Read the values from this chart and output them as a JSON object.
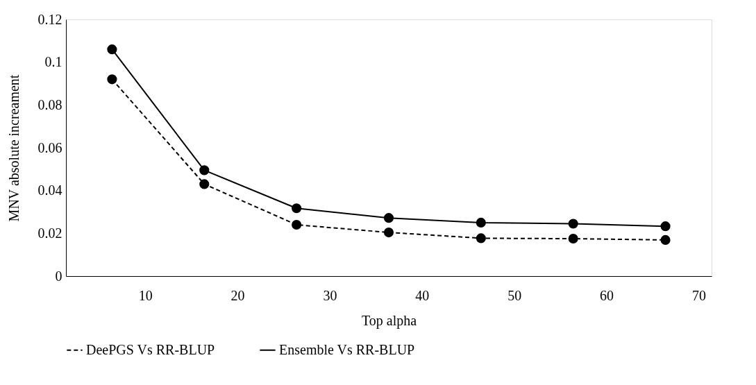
{
  "chart_data": {
    "type": "line",
    "xlabel": "Top alpha",
    "ylabel": "MNV absolute increament",
    "x": [
      6.4,
      16.4,
      26.4,
      36.4,
      46.4,
      56.4,
      66.4
    ],
    "xlim": [
      1.4,
      71.4
    ],
    "xticks": [
      10,
      20,
      30,
      40,
      50,
      60,
      70
    ],
    "ylim": [
      0,
      0.12
    ],
    "yticks": [
      0,
      0.02,
      0.04,
      0.06,
      0.08,
      0.1,
      0.12
    ],
    "series": [
      {
        "name": "DeePGS Vs RR-BLUP",
        "color": "#000000",
        "line_style": "dashed",
        "marker": "circle",
        "values": [
          0.092,
          0.043,
          0.024,
          0.0204,
          0.0177,
          0.0175,
          0.0169
        ]
      },
      {
        "name": "Ensemble Vs RR-BLUP",
        "color": "#000000",
        "line_style": "solid",
        "marker": "circle",
        "values": [
          0.106,
          0.0495,
          0.0317,
          0.0272,
          0.025,
          0.0245,
          0.0233
        ]
      }
    ],
    "grid": false,
    "legend": "bottom"
  }
}
